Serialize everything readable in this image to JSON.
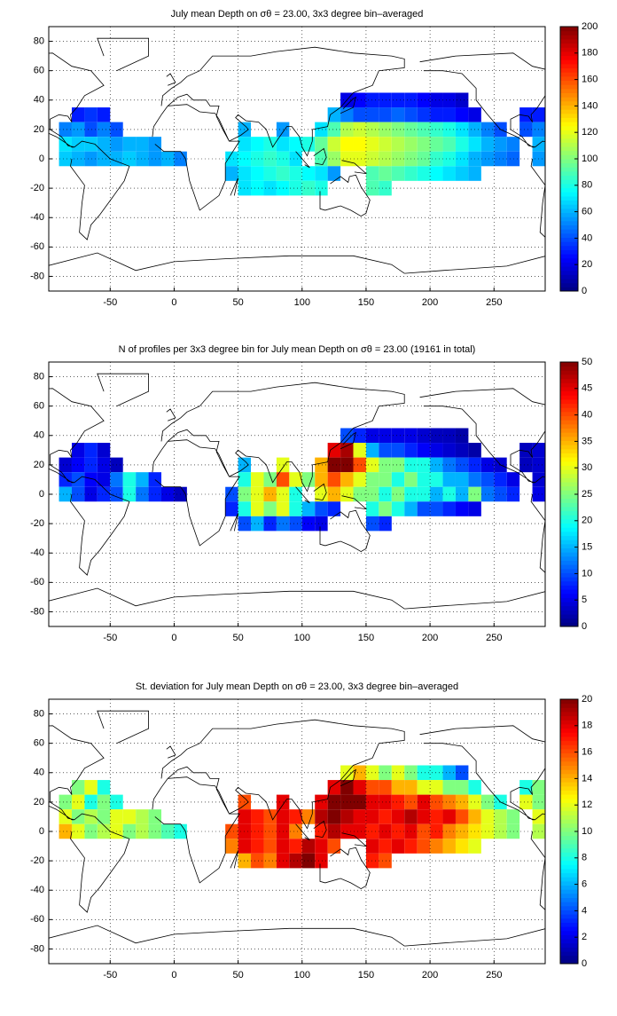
{
  "chart_data": [
    {
      "type": "heatmap",
      "title": "July mean Depth on σθ = 23.00, 3x3 degree bin–averaged",
      "x": [
        -85,
        -75,
        -65,
        -55,
        -45,
        -35,
        -25,
        -15,
        -5,
        5,
        15,
        25,
        35,
        45,
        55,
        65,
        75,
        85,
        95,
        105,
        115,
        125,
        135,
        145,
        155,
        165,
        175,
        185,
        195,
        205,
        215,
        225,
        235,
        245,
        255,
        265,
        275,
        285
      ],
      "y": [
        40,
        30,
        20,
        10,
        0,
        -10,
        -20
      ],
      "values": [
        [
          null,
          null,
          null,
          null,
          null,
          null,
          null,
          null,
          null,
          null,
          null,
          null,
          null,
          null,
          null,
          null,
          null,
          null,
          null,
          null,
          null,
          null,
          20,
          25,
          30,
          30,
          30,
          30,
          25,
          20,
          20,
          15,
          null,
          null,
          null,
          null,
          null,
          null
        ],
        [
          null,
          30,
          35,
          30,
          null,
          null,
          null,
          null,
          null,
          null,
          null,
          null,
          null,
          null,
          null,
          null,
          null,
          null,
          null,
          null,
          null,
          60,
          50,
          40,
          40,
          40,
          45,
          40,
          35,
          30,
          30,
          25,
          20,
          null,
          null,
          null,
          30,
          30
        ],
        [
          50,
          55,
          40,
          50,
          40,
          null,
          null,
          null,
          null,
          null,
          null,
          null,
          null,
          null,
          60,
          null,
          null,
          55,
          null,
          null,
          70,
          90,
          110,
          115,
          110,
          105,
          100,
          95,
          90,
          85,
          80,
          70,
          60,
          50,
          40,
          null,
          40,
          50
        ],
        [
          70,
          65,
          65,
          60,
          55,
          60,
          60,
          55,
          null,
          null,
          null,
          null,
          null,
          null,
          70,
          75,
          80,
          70,
          75,
          80,
          95,
          115,
          125,
          125,
          120,
          115,
          110,
          105,
          100,
          95,
          90,
          80,
          70,
          60,
          55,
          50,
          null,
          60
        ],
        [
          65,
          60,
          55,
          60,
          60,
          65,
          60,
          55,
          60,
          50,
          null,
          null,
          null,
          70,
          75,
          80,
          85,
          80,
          70,
          null,
          90,
          105,
          120,
          120,
          115,
          110,
          105,
          100,
          95,
          85,
          80,
          70,
          60,
          55,
          50,
          45,
          null,
          55
        ],
        [
          null,
          null,
          null,
          null,
          null,
          null,
          null,
          null,
          null,
          null,
          null,
          null,
          null,
          60,
          70,
          75,
          80,
          85,
          80,
          75,
          70,
          55,
          null,
          null,
          90,
          95,
          90,
          85,
          80,
          75,
          70,
          65,
          60,
          null,
          null,
          null,
          null,
          null
        ],
        [
          null,
          null,
          null,
          null,
          null,
          null,
          null,
          null,
          null,
          null,
          null,
          null,
          null,
          null,
          70,
          75,
          70,
          75,
          80,
          85,
          80,
          null,
          null,
          null,
          90,
          85,
          null,
          null,
          null,
          null,
          null,
          null,
          null,
          null,
          null,
          null,
          null,
          null
        ]
      ],
      "xlim": [
        -98,
        290
      ],
      "ylim": [
        -90,
        90
      ],
      "xticks": [
        -50,
        0,
        50,
        100,
        150,
        200,
        250
      ],
      "yticks": [
        -80,
        -60,
        -40,
        -20,
        0,
        20,
        40,
        60,
        80
      ],
      "grid": true,
      "colormap": "jet",
      "clim": [
        0,
        200
      ],
      "cticks": [
        0,
        20,
        40,
        60,
        80,
        100,
        120,
        140,
        160,
        180,
        200
      ]
    },
    {
      "type": "heatmap",
      "title": "N of profiles per 3x3 degree bin for July mean Depth on σθ = 23.00 (19161 in total)",
      "x": [
        -85,
        -75,
        -65,
        -55,
        -45,
        -35,
        -25,
        -15,
        -5,
        5,
        15,
        25,
        35,
        45,
        55,
        65,
        75,
        85,
        95,
        105,
        115,
        125,
        135,
        145,
        155,
        165,
        175,
        185,
        195,
        205,
        215,
        225,
        235,
        245,
        255,
        265,
        275,
        285
      ],
      "y": [
        40,
        30,
        20,
        10,
        0,
        -10,
        -20
      ],
      "values": [
        [
          null,
          null,
          null,
          null,
          null,
          null,
          null,
          null,
          null,
          null,
          null,
          null,
          null,
          null,
          null,
          null,
          null,
          null,
          null,
          null,
          null,
          null,
          10,
          8,
          5,
          5,
          5,
          5,
          4,
          3,
          3,
          2,
          null,
          null,
          null,
          null,
          null,
          null
        ],
        [
          null,
          5,
          8,
          4,
          null,
          null,
          null,
          null,
          null,
          null,
          null,
          null,
          null,
          null,
          null,
          null,
          null,
          null,
          null,
          null,
          null,
          45,
          48,
          30,
          15,
          10,
          10,
          8,
          6,
          5,
          4,
          3,
          2,
          null,
          null,
          null,
          3,
          4
        ],
        [
          4,
          6,
          8,
          5,
          3,
          null,
          null,
          null,
          null,
          null,
          null,
          null,
          null,
          null,
          15,
          null,
          null,
          30,
          null,
          null,
          35,
          50,
          50,
          40,
          30,
          25,
          25,
          20,
          20,
          15,
          12,
          10,
          8,
          5,
          4,
          null,
          3,
          4
        ],
        [
          8,
          10,
          6,
          5,
          12,
          20,
          15,
          8,
          null,
          null,
          null,
          null,
          null,
          null,
          20,
          30,
          25,
          40,
          30,
          25,
          35,
          40,
          35,
          30,
          25,
          25,
          20,
          25,
          20,
          20,
          15,
          15,
          12,
          10,
          8,
          5,
          null,
          4
        ],
        [
          15,
          10,
          5,
          8,
          10,
          20,
          12,
          8,
          5,
          3,
          null,
          null,
          null,
          10,
          25,
          30,
          35,
          30,
          20,
          null,
          30,
          35,
          30,
          25,
          25,
          20,
          25,
          20,
          20,
          15,
          20,
          15,
          25,
          12,
          10,
          8,
          null,
          5
        ],
        [
          null,
          null,
          null,
          null,
          null,
          null,
          null,
          null,
          null,
          null,
          null,
          null,
          null,
          8,
          20,
          30,
          25,
          30,
          20,
          15,
          10,
          8,
          null,
          null,
          20,
          25,
          20,
          15,
          10,
          10,
          8,
          6,
          5,
          null,
          null,
          null,
          null,
          null
        ],
        [
          null,
          null,
          null,
          null,
          null,
          null,
          null,
          null,
          null,
          null,
          null,
          null,
          null,
          null,
          10,
          15,
          8,
          12,
          10,
          6,
          5,
          null,
          null,
          null,
          10,
          8,
          null,
          null,
          null,
          null,
          null,
          null,
          null,
          null,
          null,
          null,
          null,
          null
        ]
      ],
      "xlim": [
        -98,
        290
      ],
      "ylim": [
        -90,
        90
      ],
      "xticks": [
        -50,
        0,
        50,
        100,
        150,
        200,
        250
      ],
      "yticks": [
        -80,
        -60,
        -40,
        -20,
        0,
        20,
        40,
        60,
        80
      ],
      "grid": true,
      "colormap": "jet",
      "clim": [
        0,
        50
      ],
      "cticks": [
        0,
        5,
        10,
        15,
        20,
        25,
        30,
        35,
        40,
        45,
        50
      ]
    },
    {
      "type": "heatmap",
      "title": "St. deviation for July mean Depth on σθ = 23.00, 3x3 degree bin–averaged",
      "x": [
        -85,
        -75,
        -65,
        -55,
        -45,
        -35,
        -25,
        -15,
        -5,
        5,
        15,
        25,
        35,
        45,
        55,
        65,
        75,
        85,
        95,
        105,
        115,
        125,
        135,
        145,
        155,
        165,
        175,
        185,
        195,
        205,
        215,
        225,
        235,
        245,
        255,
        265,
        275,
        285
      ],
      "y": [
        40,
        30,
        20,
        10,
        0,
        -10,
        -20
      ],
      "values": [
        [
          null,
          null,
          null,
          null,
          null,
          null,
          null,
          null,
          null,
          null,
          null,
          null,
          null,
          null,
          null,
          null,
          null,
          null,
          null,
          null,
          null,
          null,
          12,
          14,
          12,
          10,
          12,
          10,
          8,
          8,
          6,
          4,
          null,
          null,
          null,
          null,
          null,
          null
        ],
        [
          null,
          10,
          12,
          8,
          null,
          null,
          null,
          null,
          null,
          null,
          null,
          null,
          null,
          null,
          null,
          null,
          null,
          null,
          null,
          null,
          null,
          18,
          20,
          18,
          16,
          16,
          14,
          14,
          12,
          12,
          10,
          10,
          8,
          null,
          null,
          null,
          8,
          10
        ],
        [
          10,
          12,
          8,
          10,
          8,
          null,
          null,
          null,
          null,
          null,
          null,
          null,
          null,
          null,
          16,
          null,
          null,
          18,
          null,
          null,
          18,
          20,
          20,
          20,
          18,
          18,
          17,
          16,
          18,
          16,
          15,
          14,
          12,
          10,
          8,
          null,
          12,
          10
        ],
        [
          12,
          10,
          11,
          10,
          12,
          12,
          11,
          10,
          null,
          null,
          null,
          null,
          null,
          null,
          18,
          17,
          16,
          18,
          17,
          15,
          19,
          20,
          19,
          18,
          18,
          17,
          18,
          19,
          18,
          17,
          18,
          16,
          14,
          12,
          11,
          10,
          null,
          12
        ],
        [
          14,
          12,
          10,
          11,
          12,
          10,
          11,
          10,
          9,
          8,
          null,
          null,
          null,
          16,
          18,
          17,
          16,
          18,
          15,
          null,
          17,
          19,
          18,
          18,
          17,
          18,
          17,
          18,
          16,
          17,
          15,
          14,
          13,
          12,
          11,
          10,
          null,
          11
        ],
        [
          null,
          null,
          null,
          null,
          null,
          null,
          null,
          null,
          null,
          null,
          null,
          null,
          null,
          15,
          18,
          17,
          16,
          18,
          17,
          19,
          18,
          16,
          null,
          null,
          18,
          17,
          18,
          17,
          16,
          15,
          14,
          13,
          12,
          null,
          null,
          null,
          null,
          null
        ],
        [
          null,
          null,
          null,
          null,
          null,
          null,
          null,
          null,
          null,
          null,
          null,
          null,
          null,
          null,
          14,
          16,
          15,
          18,
          19,
          20,
          18,
          null,
          null,
          null,
          17,
          16,
          null,
          null,
          null,
          null,
          null,
          null,
          null,
          null,
          null,
          null,
          null,
          null
        ]
      ],
      "xlim": [
        -98,
        290
      ],
      "ylim": [
        -90,
        90
      ],
      "xticks": [
        -50,
        0,
        50,
        100,
        150,
        200,
        250
      ],
      "yticks": [
        -80,
        -60,
        -40,
        -20,
        0,
        20,
        40,
        60,
        80
      ],
      "grid": true,
      "colormap": "jet",
      "clim": [
        0,
        20
      ],
      "cticks": [
        0,
        2,
        4,
        6,
        8,
        10,
        12,
        14,
        16,
        18,
        20
      ]
    }
  ]
}
